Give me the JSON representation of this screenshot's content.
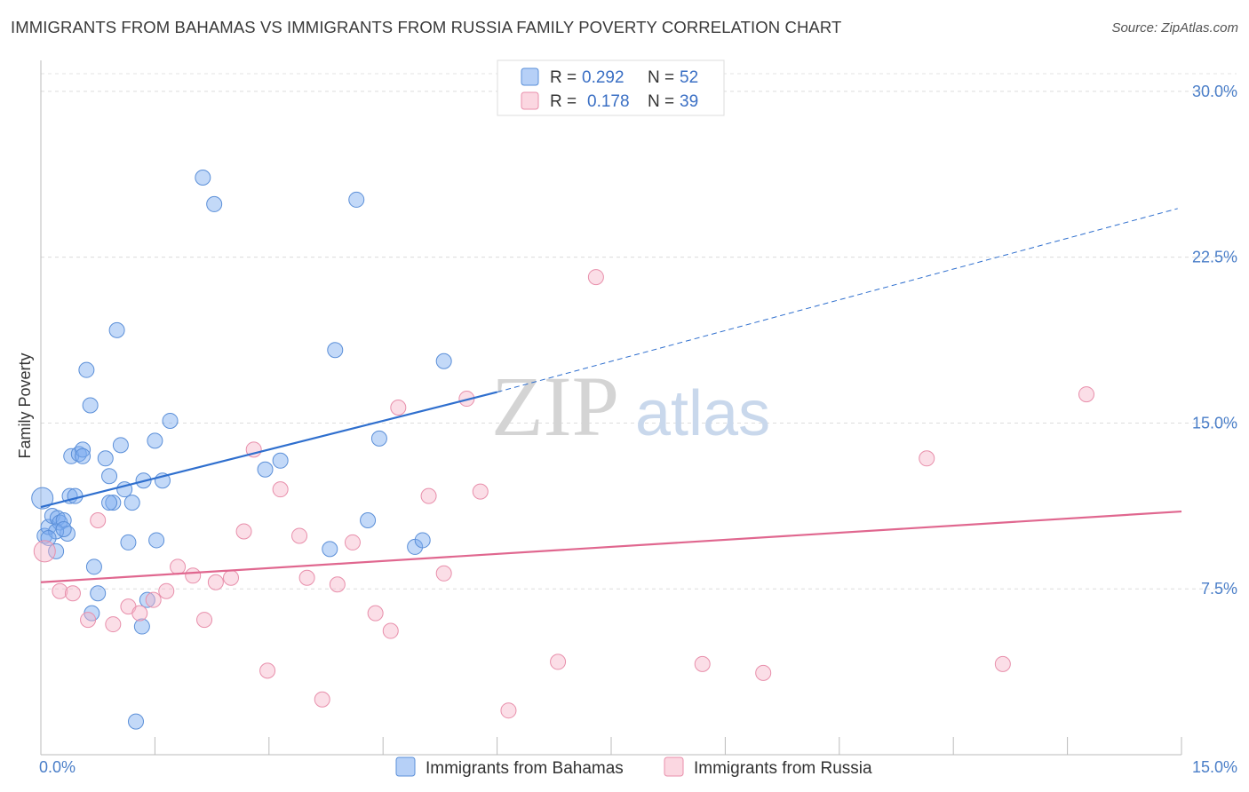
{
  "header": {
    "title": "IMMIGRANTS FROM BAHAMAS VS IMMIGRANTS FROM RUSSIA FAMILY POVERTY CORRELATION CHART",
    "source": "Source: ZipAtlas.com"
  },
  "watermark": {
    "zip": "ZIP",
    "atlas": "atlas"
  },
  "chart_data": {
    "type": "scatter",
    "title": "IMMIGRANTS FROM BAHAMAS VS IMMIGRANTS FROM RUSSIA FAMILY POVERTY CORRELATION CHART",
    "xlabel": "",
    "ylabel": "Family Poverty",
    "xlim": [
      0,
      15
    ],
    "ylim": [
      0,
      31
    ],
    "x_tick_labels": [
      {
        "value": 0,
        "label": "0.0%"
      },
      {
        "value": 15,
        "label": "15.0%"
      }
    ],
    "y_tick_labels": [
      {
        "value": 7.5,
        "label": "7.5%"
      },
      {
        "value": 15,
        "label": "15.0%"
      },
      {
        "value": 22.5,
        "label": "22.5%"
      },
      {
        "value": 30,
        "label": "30.0%"
      }
    ],
    "grid": true,
    "legend_position": "top-center",
    "series": [
      {
        "name": "Immigrants from Bahamas",
        "color": "#7aaaf0",
        "stroke": "#5b8fd8",
        "line_color": "#2f6fce",
        "r_label": "R =",
        "r_value": "0.292",
        "n_label": "N =",
        "n_value": "52",
        "trend": {
          "x0": 0,
          "y0": 11.2,
          "x1": 6.0,
          "y1": 16.4,
          "x_dash_end": 14.95,
          "y_dash_end": 24.7
        },
        "points": [
          [
            0.02,
            11.6
          ],
          [
            0.05,
            9.9
          ],
          [
            0.1,
            10.3
          ],
          [
            0.15,
            10.8
          ],
          [
            0.2,
            9.2
          ],
          [
            0.22,
            10.7
          ],
          [
            0.25,
            10.5
          ],
          [
            0.3,
            10.6
          ],
          [
            0.35,
            10.0
          ],
          [
            0.38,
            11.7
          ],
          [
            0.4,
            13.5
          ],
          [
            0.45,
            11.7
          ],
          [
            0.5,
            13.6
          ],
          [
            0.55,
            13.8
          ],
          [
            0.6,
            17.4
          ],
          [
            0.65,
            15.8
          ],
          [
            0.7,
            8.5
          ],
          [
            0.75,
            7.3
          ],
          [
            0.85,
            13.4
          ],
          [
            0.9,
            12.6
          ],
          [
            0.95,
            11.4
          ],
          [
            1.0,
            19.2
          ],
          [
            1.05,
            14.0
          ],
          [
            1.1,
            12.0
          ],
          [
            1.15,
            9.6
          ],
          [
            1.2,
            11.4
          ],
          [
            1.25,
            1.5
          ],
          [
            1.35,
            12.4
          ],
          [
            1.4,
            7.0
          ],
          [
            1.5,
            14.2
          ],
          [
            1.52,
            9.7
          ],
          [
            1.6,
            12.4
          ],
          [
            1.7,
            15.1
          ],
          [
            2.13,
            26.1
          ],
          [
            2.28,
            24.9
          ],
          [
            2.95,
            12.9
          ],
          [
            3.15,
            13.3
          ],
          [
            3.8,
            9.3
          ],
          [
            3.87,
            18.3
          ],
          [
            4.15,
            25.1
          ],
          [
            4.3,
            10.6
          ],
          [
            4.45,
            14.3
          ],
          [
            4.92,
            9.4
          ],
          [
            5.02,
            9.7
          ],
          [
            5.3,
            17.8
          ],
          [
            1.33,
            5.8
          ],
          [
            0.67,
            6.4
          ],
          [
            0.2,
            10.1
          ],
          [
            0.1,
            9.8
          ],
          [
            0.3,
            10.2
          ],
          [
            0.55,
            13.5
          ],
          [
            0.9,
            11.4
          ]
        ]
      },
      {
        "name": "Immigrants from Russia",
        "color": "#f7b6c9",
        "stroke": "#e88fab",
        "line_color": "#e0678f",
        "r_label": "R =",
        "r_value": "0.178",
        "n_label": "N =",
        "n_value": "39",
        "trend": {
          "x0": 0,
          "y0": 7.8,
          "x1": 15.0,
          "y1": 11.0
        },
        "points": [
          [
            0.05,
            9.2
          ],
          [
            0.25,
            7.4
          ],
          [
            0.42,
            7.3
          ],
          [
            0.62,
            6.1
          ],
          [
            0.75,
            10.6
          ],
          [
            0.95,
            5.9
          ],
          [
            1.15,
            6.7
          ],
          [
            1.3,
            6.4
          ],
          [
            1.48,
            7.0
          ],
          [
            1.65,
            7.4
          ],
          [
            1.8,
            8.5
          ],
          [
            2.0,
            8.1
          ],
          [
            2.15,
            6.1
          ],
          [
            2.3,
            7.8
          ],
          [
            2.5,
            8.0
          ],
          [
            2.67,
            10.1
          ],
          [
            2.8,
            13.8
          ],
          [
            2.98,
            3.8
          ],
          [
            3.15,
            12.0
          ],
          [
            3.4,
            9.9
          ],
          [
            3.5,
            8.0
          ],
          [
            3.7,
            2.5
          ],
          [
            3.9,
            7.7
          ],
          [
            4.1,
            9.6
          ],
          [
            4.4,
            6.4
          ],
          [
            4.6,
            5.6
          ],
          [
            4.7,
            15.7
          ],
          [
            5.1,
            11.7
          ],
          [
            5.3,
            8.2
          ],
          [
            5.6,
            16.1
          ],
          [
            5.78,
            11.9
          ],
          [
            6.15,
            2.0
          ],
          [
            6.8,
            4.2
          ],
          [
            7.3,
            21.6
          ],
          [
            8.7,
            4.1
          ],
          [
            9.5,
            3.7
          ],
          [
            11.65,
            13.4
          ],
          [
            12.65,
            4.1
          ],
          [
            13.75,
            16.3
          ]
        ]
      }
    ]
  }
}
